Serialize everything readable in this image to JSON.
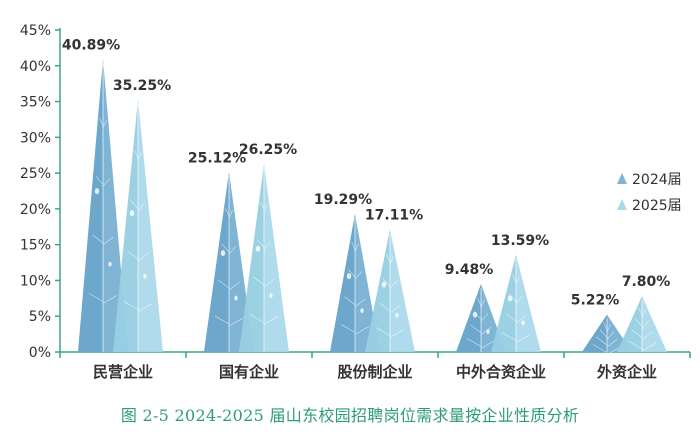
{
  "chart_data": {
    "type": "bar",
    "categories": [
      "民营企业",
      "国有企业",
      "股份制企业",
      "中外合资企业",
      "外资企业"
    ],
    "series": [
      {
        "name": "2024届",
        "values": [
          40.89,
          25.12,
          19.29,
          9.48,
          5.22
        ],
        "labels": [
          "40.89%",
          "25.12%",
          "19.29%",
          "9.48%",
          "5.22%"
        ]
      },
      {
        "name": "2025届",
        "values": [
          35.25,
          26.25,
          17.11,
          13.59,
          7.8
        ],
        "labels": [
          "35.25%",
          "26.25%",
          "17.11%",
          "13.59%",
          "7.80%"
        ]
      }
    ],
    "ylim": [
      0,
      45
    ],
    "yticks": [
      0,
      5,
      10,
      15,
      20,
      25,
      30,
      35,
      40,
      45
    ],
    "ytick_labels": [
      "0%",
      "5%",
      "10%",
      "15%",
      "20%",
      "25%",
      "30%",
      "35%",
      "40%",
      "45%"
    ],
    "legend_position": "right",
    "grid": false
  },
  "colors": {
    "series_2024": "#7fb4d4",
    "series_2025": "#a9d8ea",
    "axis": "#3aa77a",
    "text": "#333333"
  },
  "caption": "图 2-5 2024-2025 届山东校园招聘岗位需求量按企业性质分析"
}
